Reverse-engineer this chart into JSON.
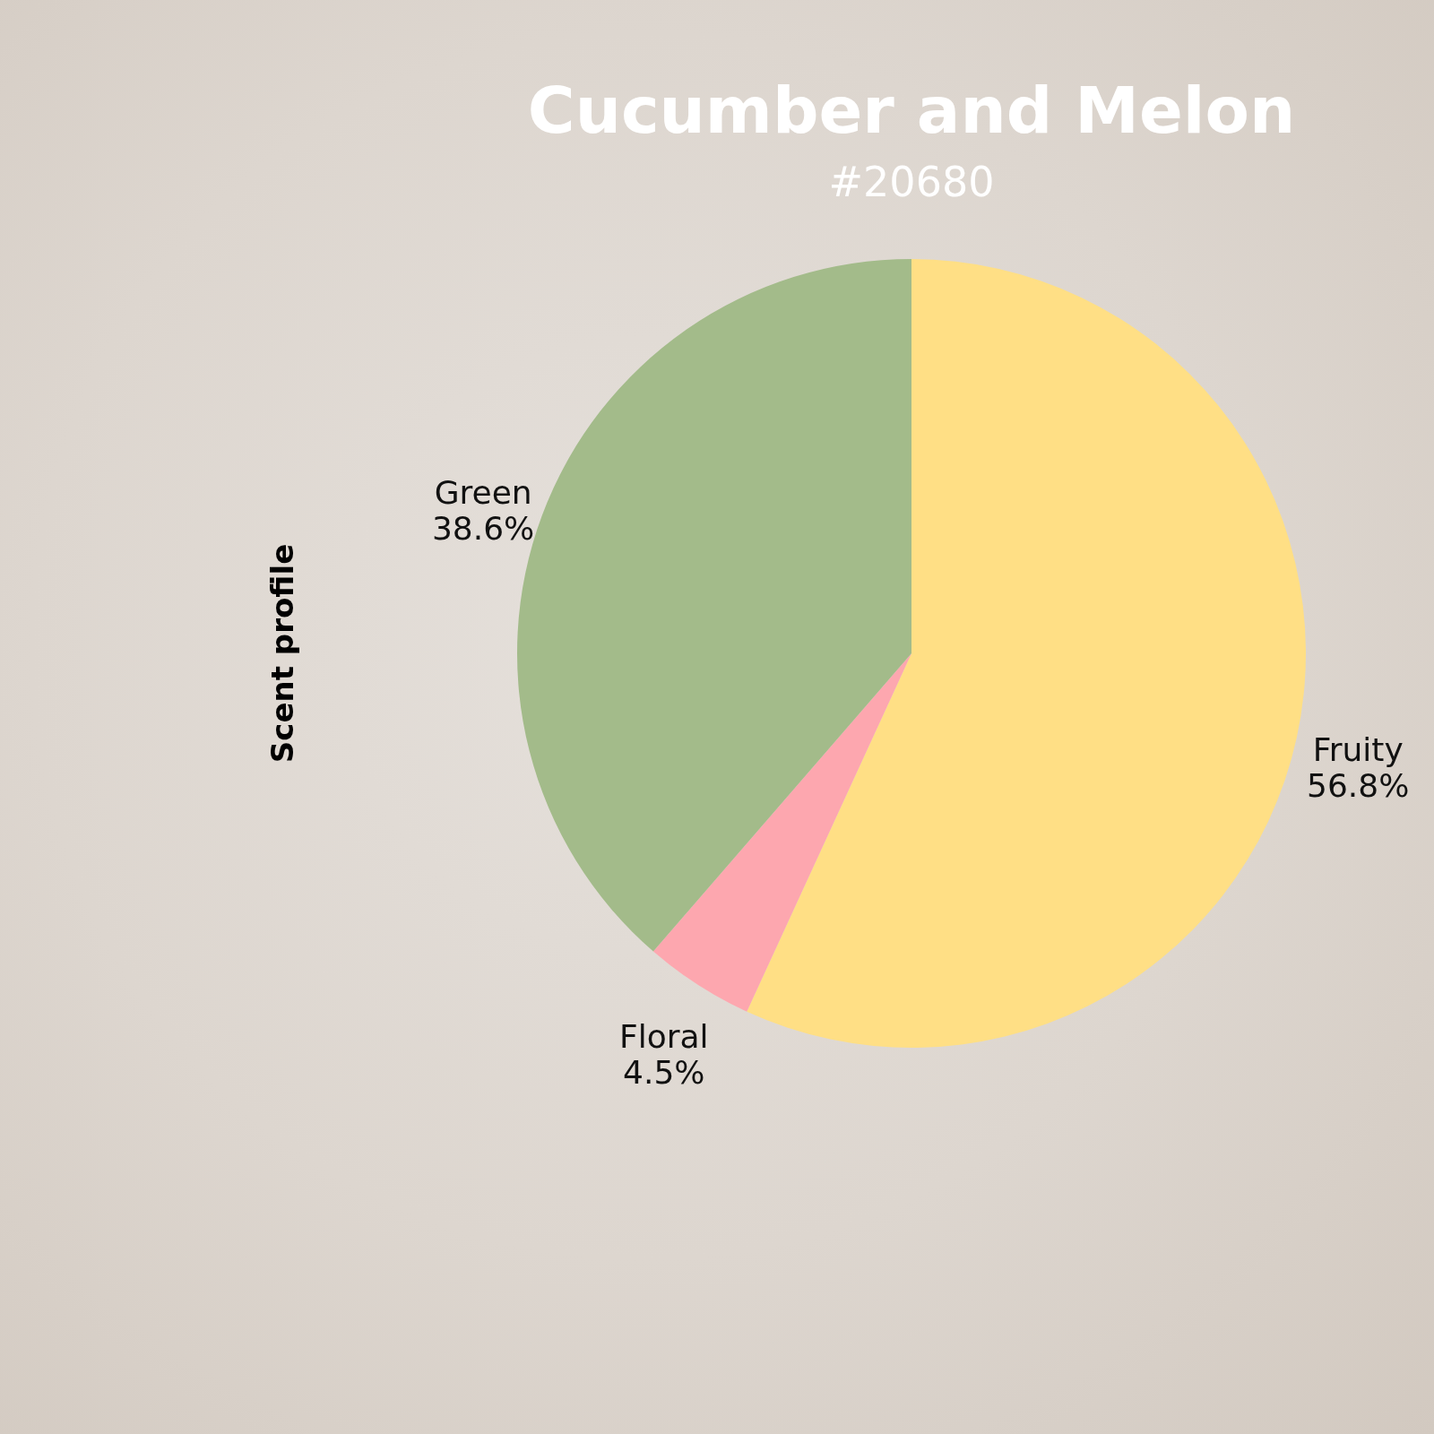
{
  "chart_data": {
    "type": "pie",
    "title": "Cucumber and Melon",
    "subtitle": "#20680",
    "ylabel": "Scent profile",
    "categories": [
      "Fruity",
      "Floral",
      "Green"
    ],
    "values": [
      56.8,
      4.5,
      38.6
    ],
    "value_labels": [
      "56.8%",
      "4.5%",
      "38.6%"
    ],
    "colors": [
      "#ffdf85",
      "#fda7af",
      "#a3bb8a"
    ],
    "legend": false
  }
}
